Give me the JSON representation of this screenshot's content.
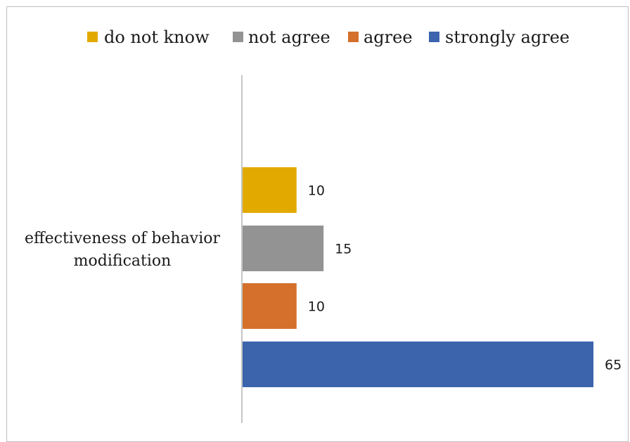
{
  "chart_data": {
    "type": "bar",
    "orientation": "horizontal",
    "title": "",
    "xlabel": "",
    "ylabel": "",
    "categories": [
      "effectiveness of behavior modification"
    ],
    "category_lines": [
      "effectiveness of behavior",
      "modification"
    ],
    "series": [
      {
        "name": "do not know",
        "values": [
          10
        ],
        "color": "#E2AA00"
      },
      {
        "name": "not agree",
        "values": [
          15
        ],
        "color": "#939393"
      },
      {
        "name": "agree",
        "values": [
          10
        ],
        "color": "#D4702C"
      },
      {
        "name": "strongly agree",
        "values": [
          65
        ],
        "color": "#3C64AD"
      }
    ],
    "xlim": [
      0,
      65
    ],
    "legend": "top",
    "grid": false,
    "data_labels": true
  }
}
